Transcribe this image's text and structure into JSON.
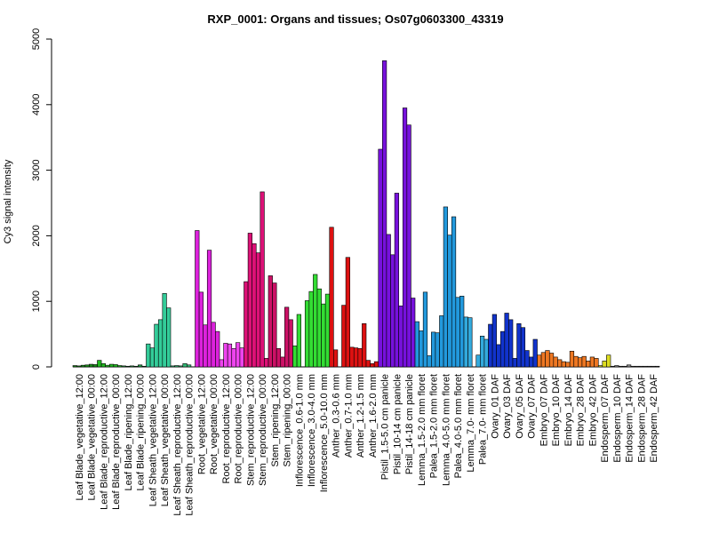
{
  "chart_data": {
    "type": "bar",
    "title": "RXP_0001: Organs and tissues; Os07g0603300_43319",
    "xlabel": "",
    "ylabel": "Cy3 signal intensity",
    "ylim": [
      0,
      5000
    ],
    "yticks": [
      0,
      1000,
      2000,
      3000,
      4000,
      5000
    ],
    "grid": false,
    "legend": "none",
    "groups": [
      {
        "label": "Leaf Blade_vegetative_12:00",
        "color": "#1a8f1a",
        "values": [
          20,
          15,
          25
        ]
      },
      {
        "label": "Leaf Blade_vegetative_00:00",
        "color": "#1a8f1a",
        "values": [
          30,
          40,
          35
        ]
      },
      {
        "label": "Leaf Blade_reproductive_12:00",
        "color": "#22bb22",
        "values": [
          100,
          50,
          25
        ]
      },
      {
        "label": "Leaf Blade_reproductive_00:00",
        "color": "#22bb22",
        "values": [
          40,
          35,
          20
        ]
      },
      {
        "label": "Leaf Blade_ripening_12:00",
        "color": "#229944",
        "values": [
          15,
          10,
          15
        ]
      },
      {
        "label": "Leaf Blade_ripening_00:00",
        "color": "#229944",
        "values": [
          10,
          30,
          10
        ]
      },
      {
        "label": "Leaf Sheath_vegetative_12:00",
        "color": "#33cc99",
        "values": [
          350,
          290,
          650
        ]
      },
      {
        "label": "Leaf Sheath_vegetative_00:00",
        "color": "#33cc99",
        "values": [
          720,
          1120,
          900
        ]
      },
      {
        "label": "Leaf Sheath_reproductive_12:00",
        "color": "#33bb77",
        "values": [
          15,
          20,
          15
        ]
      },
      {
        "label": "Leaf Sheath_reproductive_00:00",
        "color": "#33bb77",
        "values": [
          50,
          30,
          0
        ]
      },
      {
        "label": "Root_vegetative_12:00",
        "color": "#dd22dd",
        "values": [
          2080,
          1140,
          640
        ]
      },
      {
        "label": "Root_vegetative_00:00",
        "color": "#dd22dd",
        "values": [
          1780,
          680,
          540
        ]
      },
      {
        "label": "Root_reproductive_12:00",
        "color": "#ee44ee",
        "values": [
          110,
          360,
          350
        ]
      },
      {
        "label": "Root_reproductive_00:00",
        "color": "#ee44ee",
        "values": [
          280,
          370,
          290
        ]
      },
      {
        "label": "Stem_reproductive_12:00",
        "color": "#dd1177",
        "values": [
          1300,
          2040,
          1880
        ]
      },
      {
        "label": "Stem_reproductive_00:00",
        "color": "#dd1177",
        "values": [
          1740,
          2670,
          130
        ]
      },
      {
        "label": "Stem_ripening_12:00",
        "color": "#cc1166",
        "values": [
          1390,
          1280,
          280
        ]
      },
      {
        "label": "Stem_ripening_00:00",
        "color": "#cc1166",
        "values": [
          150,
          910,
          720
        ]
      },
      {
        "label": "Inflorescence_0.6-1.0 mm",
        "color": "#33dd33",
        "values": [
          320,
          800,
          0
        ]
      },
      {
        "label": "Inflorescence_3.0-4.0 mm",
        "color": "#33dd33",
        "values": [
          1010,
          1150,
          1410
        ]
      },
      {
        "label": "Inflorescence_5.0-10.0 mm",
        "color": "#33dd33",
        "values": [
          1190,
          960,
          1110
        ]
      },
      {
        "label": "Anther_0.3-0.6 mm",
        "color": "#dd1111",
        "values": [
          2130,
          260,
          0
        ]
      },
      {
        "label": "Anther_0.7-1.0 mm",
        "color": "#dd1111",
        "values": [
          940,
          1670,
          300
        ]
      },
      {
        "label": "Anther_1.2-1.5 mm",
        "color": "#dd1111",
        "values": [
          290,
          280,
          660
        ]
      },
      {
        "label": "Anther_1.6-2.0 mm",
        "color": "#dd1111",
        "values": [
          100,
          50,
          80
        ]
      },
      {
        "label": "Pistil_1.5-5.0 cm panicle",
        "color": "#7711dd",
        "values": [
          3320,
          4670,
          2020
        ]
      },
      {
        "label": "Pistil_10-14 cm panicle",
        "color": "#7711dd",
        "values": [
          1710,
          2650,
          930
        ]
      },
      {
        "label": "Pistil_14-18 cm panicle",
        "color": "#7711dd",
        "values": [
          3950,
          3690,
          1050
        ]
      },
      {
        "label": "Lemma_1.5-2.0 mm floret",
        "color": "#2299dd",
        "values": [
          690,
          550,
          1140
        ]
      },
      {
        "label": "Palea_1.5-2.0 mm floret",
        "color": "#2299dd",
        "values": [
          170,
          530,
          520
        ]
      },
      {
        "label": "Lemma_4.0-5.0 mm floret",
        "color": "#2299dd",
        "values": [
          780,
          2440,
          2010
        ]
      },
      {
        "label": "Palea_4.0-5.0 mm floret",
        "color": "#2299dd",
        "values": [
          2290,
          1060,
          1080
        ]
      },
      {
        "label": "Lemma_7.0- mm floret",
        "color": "#33aadd",
        "values": [
          760,
          750,
          0
        ]
      },
      {
        "label": "Palea_7.0- mm floret",
        "color": "#33aadd",
        "values": [
          180,
          470,
          420
        ]
      },
      {
        "label": "Ovary_01 DAF",
        "color": "#1133cc",
        "values": [
          650,
          800,
          340
        ]
      },
      {
        "label": "Ovary_03 DAF",
        "color": "#1133cc",
        "values": [
          540,
          820,
          720
        ]
      },
      {
        "label": "Ovary_05 DAF",
        "color": "#1133cc",
        "values": [
          130,
          660,
          600
        ]
      },
      {
        "label": "Ovary_07 DAF",
        "color": "#1133cc",
        "values": [
          250,
          150,
          420
        ]
      },
      {
        "label": "Embryo_07 DAF",
        "color": "#ee7722",
        "values": [
          180,
          220,
          250
        ]
      },
      {
        "label": "Embryo_10 DAF",
        "color": "#ee7722",
        "values": [
          210,
          150,
          110
        ]
      },
      {
        "label": "Embryo_14 DAF",
        "color": "#ee7722",
        "values": [
          80,
          70,
          240
        ]
      },
      {
        "label": "Embryo_28 DAF",
        "color": "#ee7722",
        "values": [
          160,
          140,
          160
        ]
      },
      {
        "label": "Embryo_42 DAF",
        "color": "#ee7722",
        "values": [
          90,
          150,
          130
        ]
      },
      {
        "label": "Endosperm_07 DAF",
        "color": "#dddd22",
        "values": [
          20,
          90,
          180
        ]
      },
      {
        "label": "Endosperm_10 DAF",
        "color": "#888888",
        "values": [
          10,
          20,
          10
        ]
      },
      {
        "label": "Endosperm_14 DAF",
        "color": "#888888",
        "values": [
          10,
          30,
          10
        ]
      },
      {
        "label": "Endosperm_28 DAF",
        "color": "#888888",
        "values": [
          10,
          10,
          10
        ]
      },
      {
        "label": "Endosperm_42 DAF",
        "color": "#888888",
        "values": [
          10,
          10,
          10
        ]
      }
    ]
  }
}
